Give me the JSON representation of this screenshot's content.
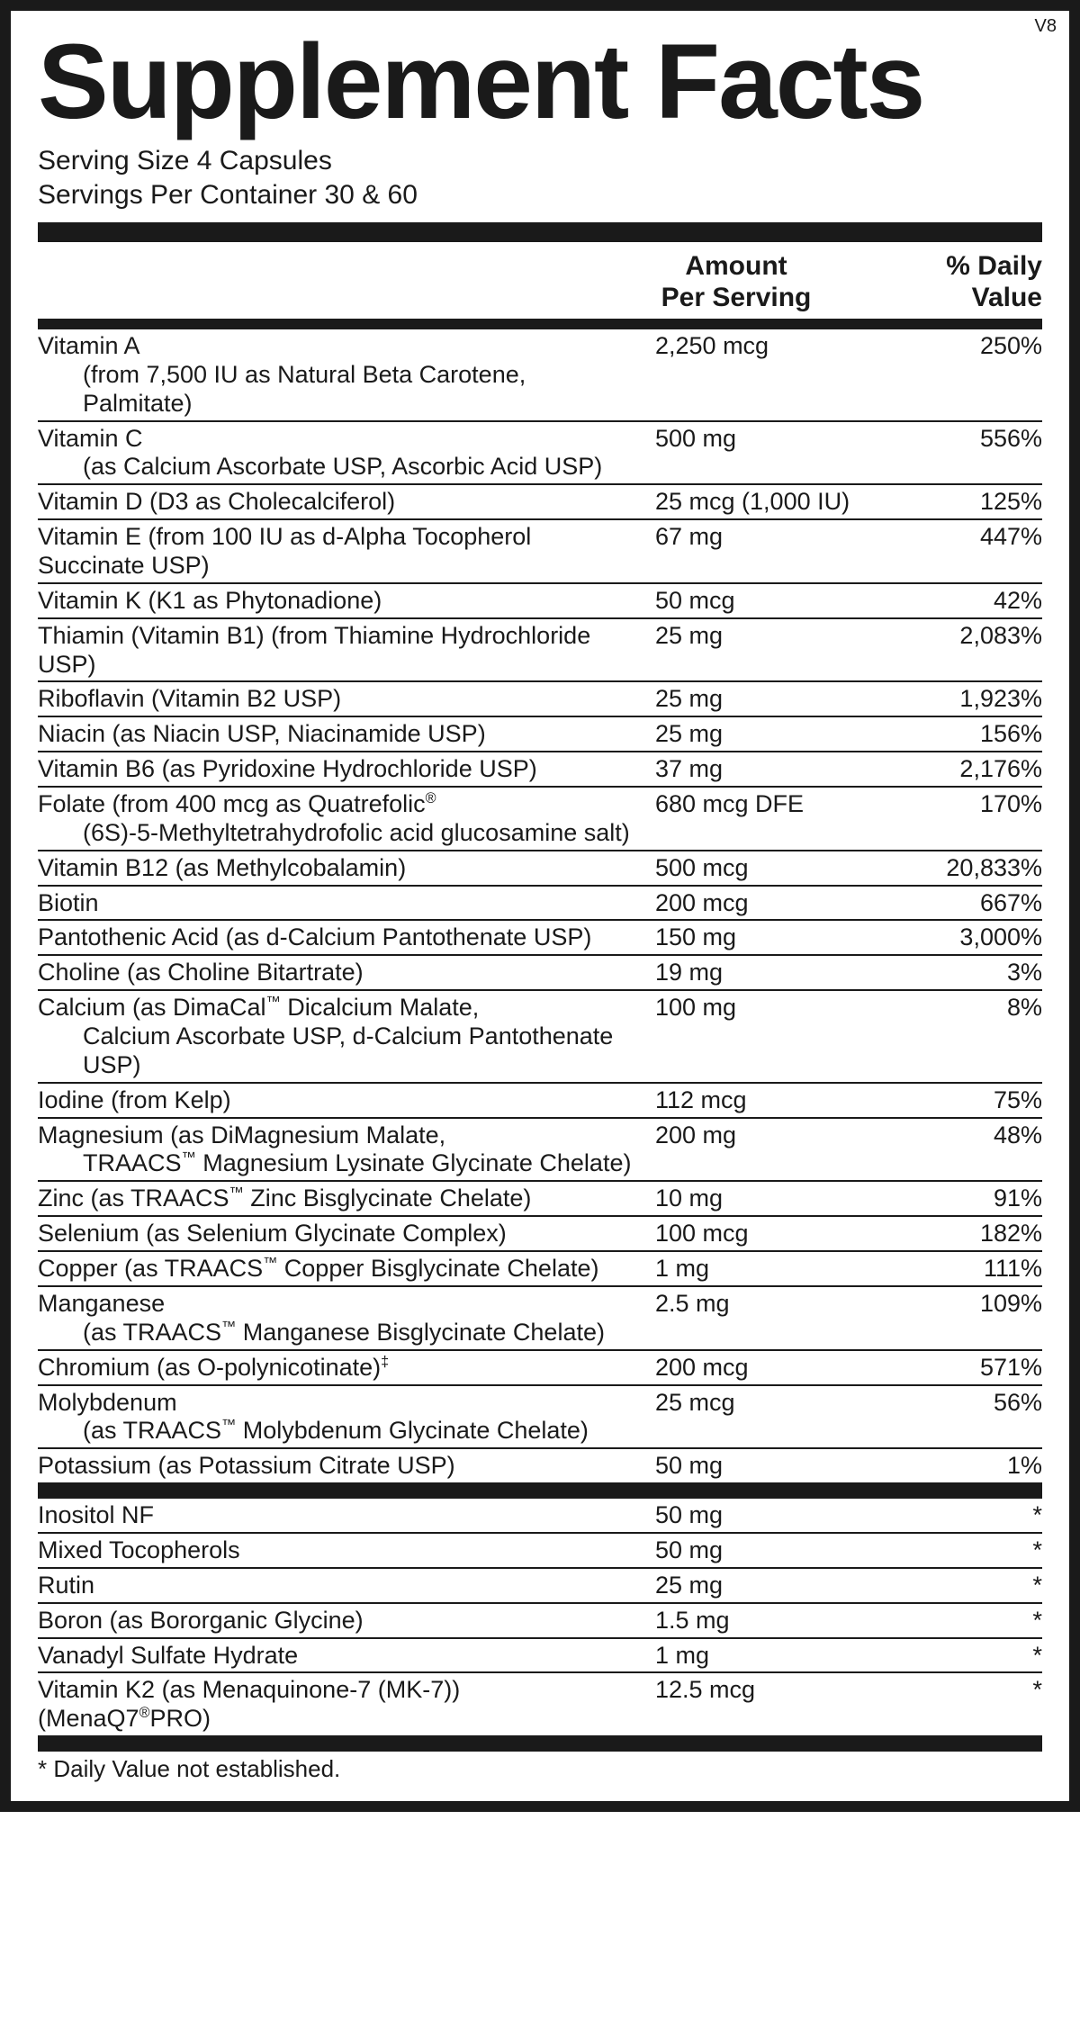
{
  "version": "V8",
  "title": "Supplement Facts",
  "serving_size": "Serving Size 4 Capsules",
  "servings_per_container": "Servings Per Container 30 & 60",
  "header": {
    "amount_l1": "Amount",
    "amount_l2": "Per Serving",
    "dv_l1": "% Daily",
    "dv_l2": "Value"
  },
  "rows_main": [
    {
      "name": "Vitamin A",
      "sub": "(from 7,500 IU as Natural Beta Carotene, Palmitate)",
      "amount": "2,250 mcg",
      "dv": "250%"
    },
    {
      "name": "Vitamin C",
      "sub": "(as Calcium Ascorbate USP, Ascorbic Acid USP)",
      "amount": "500 mg",
      "dv": "556%"
    },
    {
      "name": "Vitamin D (D3 as Cholecalciferol)",
      "amount": "25 mcg (1,000 IU)",
      "dv": "125%"
    },
    {
      "name": "Vitamin E (from 100 IU as d-Alpha Tocopherol Succinate USP)",
      "amount": "67 mg",
      "dv": "447%"
    },
    {
      "name": "Vitamin K (K1 as Phytonadione)",
      "amount": "50 mcg",
      "dv": "42%"
    },
    {
      "name": "Thiamin (Vitamin B1) (from Thiamine Hydrochloride USP)",
      "amount": "25 mg",
      "dv": "2,083%"
    },
    {
      "name": "Riboflavin (Vitamin B2 USP)",
      "amount": "25 mg",
      "dv": "1,923%"
    },
    {
      "name": "Niacin (as Niacin USP, Niacinamide USP)",
      "amount": "25 mg",
      "dv": "156%"
    },
    {
      "name": "Vitamin B6 (as Pyridoxine Hydrochloride USP)",
      "amount": "37 mg",
      "dv": "2,176%"
    },
    {
      "name_html": "Folate (from 400 mcg as Quatrefolic<sup>®</sup>",
      "sub": "(6S)-5-Methyltetrahydrofolic acid glucosamine salt)",
      "amount": "680 mcg DFE",
      "dv": "170%"
    },
    {
      "name": "Vitamin B12 (as Methylcobalamin)",
      "amount": "500 mcg",
      "dv": "20,833%"
    },
    {
      "name": "Biotin",
      "amount": "200 mcg",
      "dv": "667%"
    },
    {
      "name": "Pantothenic Acid (as d-Calcium Pantothenate USP)",
      "amount": "150 mg",
      "dv": "3,000%"
    },
    {
      "name": "Choline (as Choline Bitartrate)",
      "amount": "19 mg",
      "dv": "3%"
    },
    {
      "name_html": "Calcium (as DimaCal<sup>™</sup> Dicalcium Malate,",
      "sub": "Calcium Ascorbate USP, d-Calcium Pantothenate USP)",
      "amount": "100 mg",
      "dv": "8%"
    },
    {
      "name": "Iodine (from Kelp)",
      "amount": "112 mcg",
      "dv": "75%"
    },
    {
      "name": "Magnesium (as DiMagnesium Malate,",
      "sub_html": "TRAACS<sup>™</sup> Magnesium Lysinate Glycinate Chelate)",
      "amount": "200 mg",
      "dv": "48%"
    },
    {
      "name_html": "Zinc (as TRAACS<sup>™</sup> Zinc Bisglycinate Chelate)",
      "amount": "10 mg",
      "dv": "91%"
    },
    {
      "name": "Selenium (as Selenium Glycinate Complex)",
      "amount": "100 mcg",
      "dv": "182%"
    },
    {
      "name_html": "Copper (as TRAACS<sup>™</sup> Copper Bisglycinate Chelate)",
      "amount": "1 mg",
      "dv": "111%"
    },
    {
      "name": "Manganese",
      "sub_html": "(as TRAACS<sup>™</sup> Manganese Bisglycinate Chelate)",
      "amount": "2.5 mg",
      "dv": "109%"
    },
    {
      "name_html": "Chromium (as O-polynicotinate)<sup>‡</sup>",
      "amount": "200 mcg",
      "dv": "571%"
    },
    {
      "name": "Molybdenum",
      "sub_html": "(as TRAACS<sup>™</sup> Molybdenum Glycinate Chelate)",
      "amount": "25 mcg",
      "dv": "56%"
    },
    {
      "name": "Potassium (as Potassium Citrate USP)",
      "amount": "50 mg",
      "dv": "1%",
      "no_border": true
    }
  ],
  "rows_secondary": [
    {
      "name": "Inositol NF",
      "amount": "50 mg",
      "dv": "*"
    },
    {
      "name": "Mixed Tocopherols",
      "amount": "50 mg",
      "dv": "*"
    },
    {
      "name": "Rutin",
      "amount": "25 mg",
      "dv": "*"
    },
    {
      "name": "Boron (as Bororganic Glycine)",
      "amount": "1.5 mg",
      "dv": "*"
    },
    {
      "name": "Vanadyl Sulfate Hydrate",
      "amount": "1 mg",
      "dv": "*"
    },
    {
      "name_html": "Vitamin K2 (as Menaquinone-7 (MK-7)) (MenaQ7<sup>®</sup>PRO)",
      "amount": "12.5 mcg",
      "dv": "*",
      "no_border": true
    }
  ],
  "footnote": "* Daily Value not established.",
  "colors": {
    "text": "#1a1a1a",
    "background": "#ffffff",
    "bar": "#1a1a1a",
    "border": "#1a1a1a"
  }
}
